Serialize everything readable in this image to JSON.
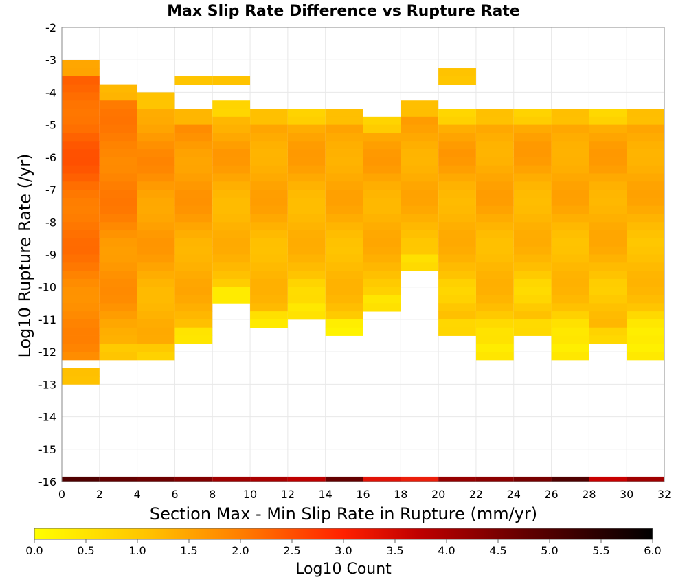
{
  "chart_data": {
    "type": "heatmap",
    "title": "Max Slip Rate Difference vs Rupture Rate",
    "xlabel": "Section Max - Min Slip Rate in Rupture (mm/yr)",
    "ylabel": "Log10 Rupture Rate (/yr)",
    "xlim": [
      0,
      32
    ],
    "ylim": [
      -16,
      -2
    ],
    "x_ticks": [
      "0",
      "2",
      "4",
      "6",
      "8",
      "10",
      "12",
      "14",
      "16",
      "18",
      "20",
      "22",
      "24",
      "26",
      "28",
      "30",
      "32"
    ],
    "y_ticks": [
      "-2",
      "-3",
      "-4",
      "-5",
      "-6",
      "-7",
      "-8",
      "-9",
      "-10",
      "-11",
      "-12",
      "-13",
      "-14",
      "-15",
      "-16"
    ],
    "x_bin_width": 2,
    "y_bin_height": 0.25,
    "grid": true,
    "colorbar": {
      "label": "Log10 Count",
      "min": 0.0,
      "max": 6.0,
      "ticks": [
        "0.0",
        "0.5",
        "1.0",
        "1.5",
        "2.0",
        "2.5",
        "3.0",
        "3.5",
        "4.0",
        "4.5",
        "5.0",
        "5.5",
        "6.0"
      ],
      "colors": [
        "#ffff00",
        "#ffa500",
        "#ff5000",
        "#e01010",
        "#5a0000",
        "#000000"
      ]
    },
    "column_ranges": [
      {
        "x": 1,
        "top": -3.0,
        "bottom": -13.0,
        "gap": [
          -12.5,
          -12.25
        ]
      },
      {
        "x": 3,
        "top": -3.75,
        "bottom": -12.25
      },
      {
        "x": 5,
        "top": -4.0,
        "bottom": -12.25
      },
      {
        "x": 7,
        "top": -4.5,
        "bottom": -11.75,
        "extra": [
          -3.75,
          -3.5
        ]
      },
      {
        "x": 9,
        "top": -4.25,
        "bottom": -10.5,
        "extra": [
          -3.75,
          -3.5
        ]
      },
      {
        "x": 11,
        "top": -4.5,
        "bottom": -11.25
      },
      {
        "x": 13,
        "top": -4.5,
        "bottom": -11.0
      },
      {
        "x": 15,
        "top": -4.5,
        "bottom": -11.5
      },
      {
        "x": 17,
        "top": -4.75,
        "bottom": -10.75
      },
      {
        "x": 19,
        "top": -4.25,
        "bottom": -9.5
      },
      {
        "x": 21,
        "top": -4.5,
        "bottom": -11.5,
        "extra": [
          -3.75,
          -3.25
        ]
      },
      {
        "x": 23,
        "top": -4.5,
        "bottom": -12.25
      },
      {
        "x": 25,
        "top": -4.5,
        "bottom": -11.5
      },
      {
        "x": 27,
        "top": -4.5,
        "bottom": -12.25
      },
      {
        "x": 29,
        "top": -4.5,
        "bottom": -11.75
      },
      {
        "x": 31,
        "top": -4.5,
        "bottom": -12.25
      }
    ],
    "bottom_row": {
      "y": -16.0,
      "values": [
        4.8,
        4.6,
        4.5,
        4.3,
        4.0,
        3.9,
        3.7,
        4.6,
        3.2,
        3.0,
        4.1,
        4.2,
        4.4,
        4.8,
        3.6,
        4.0
      ]
    }
  }
}
